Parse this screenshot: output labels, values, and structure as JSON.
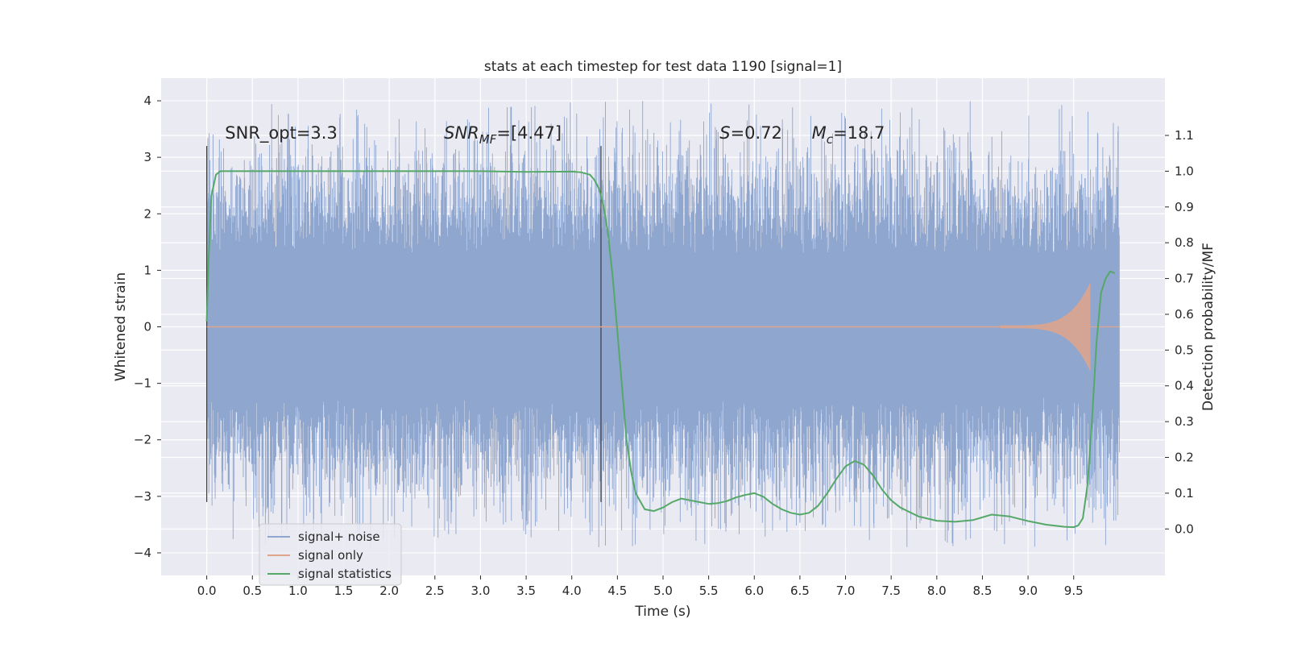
{
  "chart_data": {
    "type": "line",
    "title": "stats at each timestep for test data 1190 [signal=1]",
    "xlabel": "Time (s)",
    "ylabel": "Whitened strain",
    "ylabel_right": "Detection probability/MF",
    "xlim": [
      -0.5,
      10.5
    ],
    "ylim": [
      -4.4,
      4.4
    ],
    "ylim_right": [
      -0.13,
      1.26
    ],
    "xticks": [
      "0.0",
      "0.5",
      "1.0",
      "1.5",
      "2.0",
      "2.5",
      "3.0",
      "3.5",
      "4.0",
      "4.5",
      "5.0",
      "5.5",
      "6.0",
      "6.5",
      "7.0",
      "7.5",
      "8.0",
      "8.5",
      "9.0",
      "9.5"
    ],
    "xtick_values": [
      0.0,
      0.5,
      1.0,
      1.5,
      2.0,
      2.5,
      3.0,
      3.5,
      4.0,
      4.5,
      5.0,
      5.5,
      6.0,
      6.5,
      7.0,
      7.5,
      8.0,
      8.5,
      9.0,
      9.5
    ],
    "yticks": [
      "−4",
      "−3",
      "−2",
      "−1",
      "0",
      "1",
      "2",
      "3",
      "4"
    ],
    "ytick_values": [
      -4,
      -3,
      -2,
      -1,
      0,
      1,
      2,
      3,
      4
    ],
    "yticks_right": [
      "0.0",
      "0.1",
      "0.2",
      "0.3",
      "0.4",
      "0.5",
      "0.6",
      "0.7",
      "0.8",
      "0.9",
      "1.0",
      "1.1"
    ],
    "ytick_values_right": [
      0.0,
      0.1,
      0.2,
      0.3,
      0.4,
      0.5,
      0.6,
      0.7,
      0.8,
      0.9,
      1.0,
      1.1
    ],
    "grid": true,
    "legend_position": "lower-left",
    "series": [
      {
        "name": "signal+ noise",
        "color": "#8fa6cf",
        "axis": "left",
        "description": "whitened strain time series, roughly ±1.3 core with spikes to ±4",
        "x_range": [
          0.0,
          10.0
        ],
        "spike_range": [
          -3.9,
          4.0
        ]
      },
      {
        "name": "signal only",
        "color": "#e0a48a",
        "axis": "left",
        "description": "chirp, near zero until ~8.7 s, peak amplitude ~0.75 at 9.68 s",
        "chirp_start": 8.7,
        "merger_time": 9.68,
        "peak_amplitude": 0.75
      },
      {
        "name": "signal statistics",
        "color": "#55a868",
        "axis": "right",
        "x": [
          0.0,
          0.02,
          0.05,
          0.1,
          0.15,
          0.3,
          0.5,
          1.0,
          2.0,
          3.0,
          3.5,
          4.0,
          4.1,
          4.2,
          4.25,
          4.3,
          4.35,
          4.4,
          4.45,
          4.5,
          4.55,
          4.6,
          4.65,
          4.7,
          4.8,
          4.9,
          5.0,
          5.1,
          5.2,
          5.3,
          5.4,
          5.5,
          5.6,
          5.7,
          5.8,
          5.9,
          6.0,
          6.1,
          6.2,
          6.3,
          6.4,
          6.5,
          6.6,
          6.7,
          6.8,
          6.9,
          7.0,
          7.1,
          7.2,
          7.3,
          7.4,
          7.5,
          7.6,
          7.8,
          8.0,
          8.2,
          8.4,
          8.6,
          8.8,
          9.0,
          9.2,
          9.4,
          9.5,
          9.55,
          9.6,
          9.65,
          9.7,
          9.75,
          9.8,
          9.85,
          9.9,
          9.95
        ],
        "y": [
          0.58,
          0.75,
          0.93,
          0.99,
          1.0,
          1.0,
          1.0,
          1.0,
          1.0,
          1.0,
          0.998,
          0.999,
          0.997,
          0.99,
          0.975,
          0.95,
          0.9,
          0.82,
          0.7,
          0.55,
          0.4,
          0.25,
          0.16,
          0.1,
          0.055,
          0.05,
          0.06,
          0.075,
          0.085,
          0.08,
          0.075,
          0.07,
          0.072,
          0.078,
          0.088,
          0.095,
          0.1,
          0.09,
          0.07,
          0.055,
          0.045,
          0.04,
          0.045,
          0.065,
          0.1,
          0.14,
          0.175,
          0.19,
          0.18,
          0.15,
          0.11,
          0.08,
          0.06,
          0.035,
          0.023,
          0.02,
          0.025,
          0.04,
          0.035,
          0.022,
          0.012,
          0.006,
          0.005,
          0.01,
          0.03,
          0.12,
          0.3,
          0.52,
          0.66,
          0.7,
          0.72,
          0.715
        ]
      }
    ],
    "vlines": [
      0.0,
      4.32
    ],
    "annotations": [
      {
        "id": "snr-opt",
        "text": "SNR_opt=3.3",
        "x": 0.2,
        "y": 3.33
      },
      {
        "id": "snr-mf",
        "main": "SNR",
        "sub": "MF",
        "suffix": "=[4.47]",
        "x": 2.6,
        "y": 3.33
      },
      {
        "id": "s-val",
        "italic": "S",
        "suffix": "=0.72",
        "x": 5.62,
        "y": 3.33
      },
      {
        "id": "mc-val",
        "main": "M",
        "sub": "c",
        "suffix": "=18.7",
        "x": 6.63,
        "y": 3.33
      }
    ]
  }
}
